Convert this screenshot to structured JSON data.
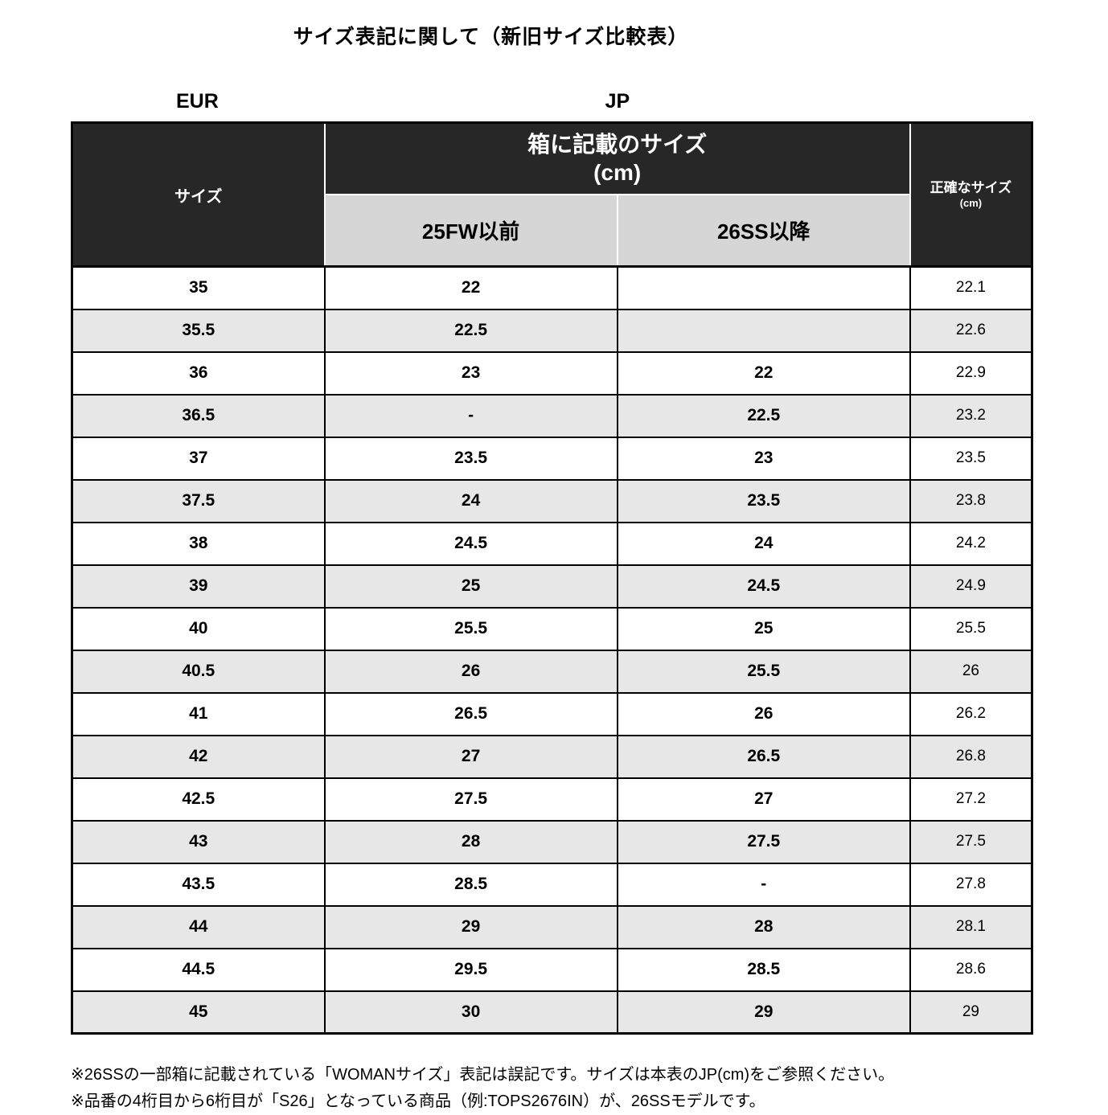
{
  "page": {
    "title": "サイズ表記に関して（新旧サイズ比較表）"
  },
  "labels": {
    "eur": "EUR",
    "jp": "JP"
  },
  "table": {
    "headers": {
      "size": "サイズ",
      "box_size_line1": "箱に記載のサイズ",
      "box_size_line2": "(cm)",
      "col_25fw": "25FW以前",
      "col_26ss": "26SS以降",
      "exact_line1": "正確なサイズ",
      "exact_line2": "(cm)"
    },
    "rows": [
      {
        "eur": "35",
        "fw25": "22",
        "ss26": "",
        "exact": "22.1"
      },
      {
        "eur": "35.5",
        "fw25": "22.5",
        "ss26": "",
        "exact": "22.6"
      },
      {
        "eur": "36",
        "fw25": "23",
        "ss26": "22",
        "exact": "22.9"
      },
      {
        "eur": "36.5",
        "fw25": "-",
        "ss26": "22.5",
        "exact": "23.2"
      },
      {
        "eur": "37",
        "fw25": "23.5",
        "ss26": "23",
        "exact": "23.5"
      },
      {
        "eur": "37.5",
        "fw25": "24",
        "ss26": "23.5",
        "exact": "23.8"
      },
      {
        "eur": "38",
        "fw25": "24.5",
        "ss26": "24",
        "exact": "24.2"
      },
      {
        "eur": "39",
        "fw25": "25",
        "ss26": "24.5",
        "exact": "24.9"
      },
      {
        "eur": "40",
        "fw25": "25.5",
        "ss26": "25",
        "exact": "25.5"
      },
      {
        "eur": "40.5",
        "fw25": "26",
        "ss26": "25.5",
        "exact": "26"
      },
      {
        "eur": "41",
        "fw25": "26.5",
        "ss26": "26",
        "exact": "26.2"
      },
      {
        "eur": "42",
        "fw25": "27",
        "ss26": "26.5",
        "exact": "26.8"
      },
      {
        "eur": "42.5",
        "fw25": "27.5",
        "ss26": "27",
        "exact": "27.2"
      },
      {
        "eur": "43",
        "fw25": "28",
        "ss26": "27.5",
        "exact": "27.5"
      },
      {
        "eur": "43.5",
        "fw25": "28.5",
        "ss26": "-",
        "exact": "27.8"
      },
      {
        "eur": "44",
        "fw25": "29",
        "ss26": "28",
        "exact": "28.1"
      },
      {
        "eur": "44.5",
        "fw25": "29.5",
        "ss26": "28.5",
        "exact": "28.6"
      },
      {
        "eur": "45",
        "fw25": "30",
        "ss26": "29",
        "exact": "29"
      }
    ]
  },
  "notes": [
    "※26SSの一部箱に記載されている「WOMANサイズ」表記は誤記です。サイズは本表のJP(cm)をご参照ください。",
    "※品番の4桁目から6桁目が「S26」となっている商品（例:TOPS2676IN）が、26SSモデルです。"
  ],
  "colors": {
    "header_bg": "#272727",
    "subheader_bg": "#d6d6d6",
    "alt_row_bg": "#e7e7e7",
    "border": "#000000"
  }
}
